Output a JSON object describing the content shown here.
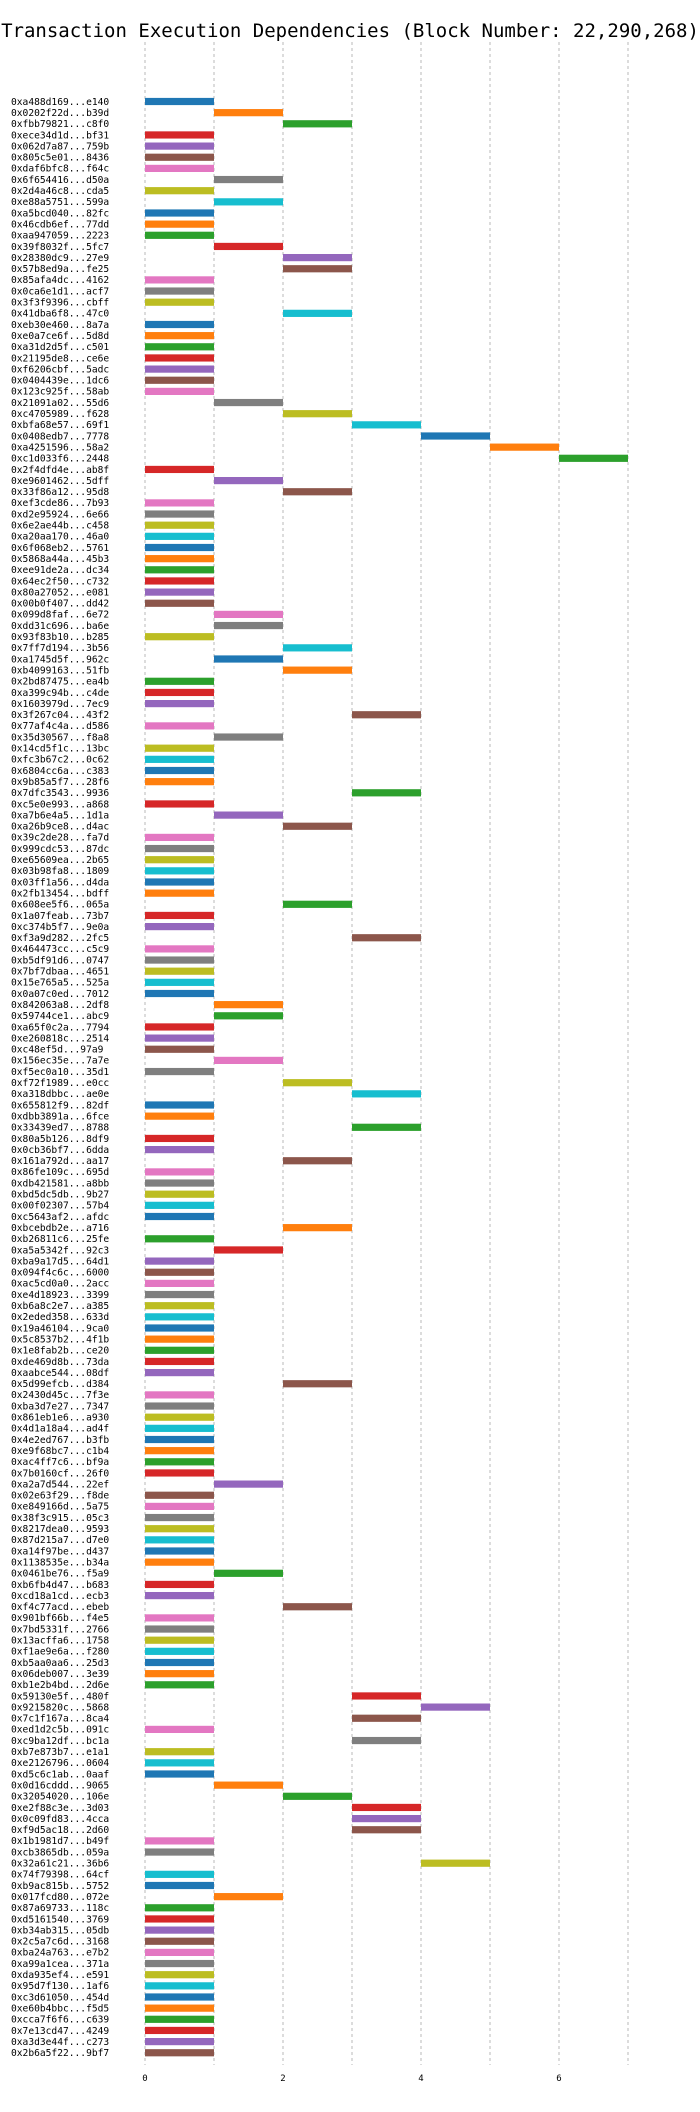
{
  "chart_data": {
    "type": "bar",
    "title": "Transaction Execution Dependencies (Block Number: 22,290,268)",
    "xlabel": "",
    "ylabel": "",
    "xlim": [
      0,
      7
    ],
    "xticks": [
      0,
      2,
      4,
      6
    ],
    "grid": "vertical dashed",
    "colors": [
      "#1f77b4",
      "#ff7f0e",
      "#2ca02c",
      "#d62728",
      "#9467bd",
      "#8c564b",
      "#e377c2",
      "#7f7f7f",
      "#bcbd22",
      "#17becf"
    ],
    "transactions": [
      {
        "tx": "0xa488d169...e140",
        "start": 0,
        "end": 1
      },
      {
        "tx": "0x0202f22d...b39d",
        "start": 1,
        "end": 2
      },
      {
        "tx": "0xfbb79821...c8f0",
        "start": 2,
        "end": 3
      },
      {
        "tx": "0xece34d1d...bf31",
        "start": 0,
        "end": 1
      },
      {
        "tx": "0x062d7a87...759b",
        "start": 0,
        "end": 1
      },
      {
        "tx": "0x805c5e01...8436",
        "start": 0,
        "end": 1
      },
      {
        "tx": "0xdaf6bfc8...f64c",
        "start": 0,
        "end": 1
      },
      {
        "tx": "0x6f654416...d50a",
        "start": 1,
        "end": 2
      },
      {
        "tx": "0x2d4a46c8...cda5",
        "start": 0,
        "end": 1
      },
      {
        "tx": "0xe88a5751...599a",
        "start": 1,
        "end": 2
      },
      {
        "tx": "0xa5bcd040...82fc",
        "start": 0,
        "end": 1
      },
      {
        "tx": "0x46cdb6ef...77dd",
        "start": 0,
        "end": 1
      },
      {
        "tx": "0xaa947059...2223",
        "start": 0,
        "end": 1
      },
      {
        "tx": "0x39f8032f...5fc7",
        "start": 1,
        "end": 2
      },
      {
        "tx": "0x28380dc9...27e9",
        "start": 2,
        "end": 3
      },
      {
        "tx": "0x57b8ed9a...fe25",
        "start": 2,
        "end": 3
      },
      {
        "tx": "0x85afa4dc...4162",
        "start": 0,
        "end": 1
      },
      {
        "tx": "0x0ca6e1d1...acf7",
        "start": 0,
        "end": 1
      },
      {
        "tx": "0x3f3f9396...cbff",
        "start": 0,
        "end": 1
      },
      {
        "tx": "0x41dba6f8...47c0",
        "start": 2,
        "end": 3
      },
      {
        "tx": "0xeb30e460...8a7a",
        "start": 0,
        "end": 1
      },
      {
        "tx": "0xe0a7ce6f...5d8d",
        "start": 0,
        "end": 1
      },
      {
        "tx": "0xa31d2d5f...c501",
        "start": 0,
        "end": 1
      },
      {
        "tx": "0x21195de8...ce6e",
        "start": 0,
        "end": 1
      },
      {
        "tx": "0xf6206cbf...5adc",
        "start": 0,
        "end": 1
      },
      {
        "tx": "0x0404439e...1dc6",
        "start": 0,
        "end": 1
      },
      {
        "tx": "0x123c925f...58ab",
        "start": 0,
        "end": 1
      },
      {
        "tx": "0x21091a02...55d6",
        "start": 1,
        "end": 2
      },
      {
        "tx": "0xc4705989...f628",
        "start": 2,
        "end": 3
      },
      {
        "tx": "0xbfa68e57...69f1",
        "start": 3,
        "end": 4
      },
      {
        "tx": "0x0408edb7...7778",
        "start": 4,
        "end": 5
      },
      {
        "tx": "0xa4251596...58a2",
        "start": 5,
        "end": 6
      },
      {
        "tx": "0xc1d033f6...2448",
        "start": 6,
        "end": 7
      },
      {
        "tx": "0x2f4dfd4e...ab8f",
        "start": 0,
        "end": 1
      },
      {
        "tx": "0xe9601462...5dff",
        "start": 1,
        "end": 2
      },
      {
        "tx": "0x33f86a12...95d8",
        "start": 2,
        "end": 3
      },
      {
        "tx": "0xef3cde86...7b93",
        "start": 0,
        "end": 1
      },
      {
        "tx": "0xd2e95924...6e66",
        "start": 0,
        "end": 1
      },
      {
        "tx": "0x6e2ae44b...c458",
        "start": 0,
        "end": 1
      },
      {
        "tx": "0xa20aa170...46a0",
        "start": 0,
        "end": 1
      },
      {
        "tx": "0x6f068eb2...5761",
        "start": 0,
        "end": 1
      },
      {
        "tx": "0x5868a44a...45b3",
        "start": 0,
        "end": 1
      },
      {
        "tx": "0xee91de2a...dc34",
        "start": 0,
        "end": 1
      },
      {
        "tx": "0x64ec2f50...c732",
        "start": 0,
        "end": 1
      },
      {
        "tx": "0x80a27052...e081",
        "start": 0,
        "end": 1
      },
      {
        "tx": "0x00b0f407...dd42",
        "start": 0,
        "end": 1
      },
      {
        "tx": "0x099d8faf...6e72",
        "start": 1,
        "end": 2
      },
      {
        "tx": "0xdd31c696...ba6e",
        "start": 1,
        "end": 2
      },
      {
        "tx": "0x93f83b10...b285",
        "start": 0,
        "end": 1
      },
      {
        "tx": "0x7ff7d194...3b56",
        "start": 2,
        "end": 3
      },
      {
        "tx": "0xa1745d5f...962c",
        "start": 1,
        "end": 2
      },
      {
        "tx": "0xb4099163...51fb",
        "start": 2,
        "end": 3
      },
      {
        "tx": "0x2bd87475...ea4b",
        "start": 0,
        "end": 1
      },
      {
        "tx": "0xa399c94b...c4de",
        "start": 0,
        "end": 1
      },
      {
        "tx": "0x1603979d...7ec9",
        "start": 0,
        "end": 1
      },
      {
        "tx": "0x3f267c04...43f2",
        "start": 3,
        "end": 4
      },
      {
        "tx": "0x77af4c4a...d586",
        "start": 0,
        "end": 1
      },
      {
        "tx": "0x35d30567...f8a8",
        "start": 1,
        "end": 2
      },
      {
        "tx": "0x14cd5f1c...13bc",
        "start": 0,
        "end": 1
      },
      {
        "tx": "0xfc3b67c2...0c62",
        "start": 0,
        "end": 1
      },
      {
        "tx": "0x6804cc6a...c383",
        "start": 0,
        "end": 1
      },
      {
        "tx": "0x9b85a5f7...28f6",
        "start": 0,
        "end": 1
      },
      {
        "tx": "0x7dfc3543...9936",
        "start": 3,
        "end": 4
      },
      {
        "tx": "0xc5e0e993...a868",
        "start": 0,
        "end": 1
      },
      {
        "tx": "0xa7b6e4a5...1d1a",
        "start": 1,
        "end": 2
      },
      {
        "tx": "0xa26b9ce8...d4ac",
        "start": 2,
        "end": 3
      },
      {
        "tx": "0x39c2de28...fa7d",
        "start": 0,
        "end": 1
      },
      {
        "tx": "0x999cdc53...87dc",
        "start": 0,
        "end": 1
      },
      {
        "tx": "0xe65609ea...2b65",
        "start": 0,
        "end": 1
      },
      {
        "tx": "0x03b98fa8...1809",
        "start": 0,
        "end": 1
      },
      {
        "tx": "0x03ff1a56...d4da",
        "start": 0,
        "end": 1
      },
      {
        "tx": "0x2fb13454...bdff",
        "start": 0,
        "end": 1
      },
      {
        "tx": "0x608ee5f6...065a",
        "start": 2,
        "end": 3
      },
      {
        "tx": "0x1a07feab...73b7",
        "start": 0,
        "end": 1
      },
      {
        "tx": "0xc374b5f7...9e0a",
        "start": 0,
        "end": 1
      },
      {
        "tx": "0xf3a9d282...2fc5",
        "start": 3,
        "end": 4
      },
      {
        "tx": "0x464473cc...c5c9",
        "start": 0,
        "end": 1
      },
      {
        "tx": "0xb5df91d6...0747",
        "start": 0,
        "end": 1
      },
      {
        "tx": "0x7bf7dbaa...4651",
        "start": 0,
        "end": 1
      },
      {
        "tx": "0x15e765a5...525a",
        "start": 0,
        "end": 1
      },
      {
        "tx": "0x0a07c0ed...7012",
        "start": 0,
        "end": 1
      },
      {
        "tx": "0x842063a8...2df8",
        "start": 1,
        "end": 2
      },
      {
        "tx": "0x59744ce1...abc9",
        "start": 1,
        "end": 2
      },
      {
        "tx": "0xa65f0c2a...7794",
        "start": 0,
        "end": 1
      },
      {
        "tx": "0xe260818c...2514",
        "start": 0,
        "end": 1
      },
      {
        "tx": "0xc48ef5d...97a9",
        "start": 0,
        "end": 1
      },
      {
        "tx": "0x156ec35e...7a7e",
        "start": 1,
        "end": 2
      },
      {
        "tx": "0xf5ec0a10...35d1",
        "start": 0,
        "end": 1
      },
      {
        "tx": "0xf72f1989...e0cc",
        "start": 2,
        "end": 3
      },
      {
        "tx": "0xa318dbbc...ae0e",
        "start": 3,
        "end": 4
      },
      {
        "tx": "0x655812f9...82df",
        "start": 0,
        "end": 1
      },
      {
        "tx": "0xdbb3891a...6fce",
        "start": 0,
        "end": 1
      },
      {
        "tx": "0x33439ed7...8788",
        "start": 3,
        "end": 4
      },
      {
        "tx": "0x80a5b126...8df9",
        "start": 0,
        "end": 1
      },
      {
        "tx": "0x0cb36bf7...6dda",
        "start": 0,
        "end": 1
      },
      {
        "tx": "0x161a792d...aa17",
        "start": 2,
        "end": 3
      },
      {
        "tx": "0x86fe109c...695d",
        "start": 0,
        "end": 1
      },
      {
        "tx": "0xdb421581...a8bb",
        "start": 0,
        "end": 1
      },
      {
        "tx": "0xbd5dc5db...9b27",
        "start": 0,
        "end": 1
      },
      {
        "tx": "0x00f02307...57b4",
        "start": 0,
        "end": 1
      },
      {
        "tx": "0xc5643af2...afdc",
        "start": 0,
        "end": 1
      },
      {
        "tx": "0xbcebdb2e...a716",
        "start": 2,
        "end": 3
      },
      {
        "tx": "0xb26811c6...25fe",
        "start": 0,
        "end": 1
      },
      {
        "tx": "0xa5a5342f...92c3",
        "start": 1,
        "end": 2
      },
      {
        "tx": "0xba9a17d5...64d1",
        "start": 0,
        "end": 1
      },
      {
        "tx": "0x094f4c6c...6000",
        "start": 0,
        "end": 1
      },
      {
        "tx": "0xac5cd0a0...2acc",
        "start": 0,
        "end": 1
      },
      {
        "tx": "0xe4d18923...3399",
        "start": 0,
        "end": 1
      },
      {
        "tx": "0xb6a8c2e7...a385",
        "start": 0,
        "end": 1
      },
      {
        "tx": "0x2eded358...633d",
        "start": 0,
        "end": 1
      },
      {
        "tx": "0x19a46104...9ca0",
        "start": 0,
        "end": 1
      },
      {
        "tx": "0x5c8537b2...4f1b",
        "start": 0,
        "end": 1
      },
      {
        "tx": "0x1e8fab2b...ce20",
        "start": 0,
        "end": 1
      },
      {
        "tx": "0xde469d8b...73da",
        "start": 0,
        "end": 1
      },
      {
        "tx": "0xaabce544...08df",
        "start": 0,
        "end": 1
      },
      {
        "tx": "0x5d99efcb...d384",
        "start": 2,
        "end": 3
      },
      {
        "tx": "0x2430d45c...7f3e",
        "start": 0,
        "end": 1
      },
      {
        "tx": "0xba3d7e27...7347",
        "start": 0,
        "end": 1
      },
      {
        "tx": "0x861eb1e6...a930",
        "start": 0,
        "end": 1
      },
      {
        "tx": "0x4d1a18a4...ad4f",
        "start": 0,
        "end": 1
      },
      {
        "tx": "0x4e2ed767...b3fb",
        "start": 0,
        "end": 1
      },
      {
        "tx": "0xe9f68bc7...c1b4",
        "start": 0,
        "end": 1
      },
      {
        "tx": "0xac4ff7c6...bf9a",
        "start": 0,
        "end": 1
      },
      {
        "tx": "0x7b0160cf...26f0",
        "start": 0,
        "end": 1
      },
      {
        "tx": "0xa2a7d544...22ef",
        "start": 1,
        "end": 2
      },
      {
        "tx": "0x02e63f29...f8de",
        "start": 0,
        "end": 1
      },
      {
        "tx": "0xe849166d...5a75",
        "start": 0,
        "end": 1
      },
      {
        "tx": "0x38f3c915...05c3",
        "start": 0,
        "end": 1
      },
      {
        "tx": "0x8217dea0...9593",
        "start": 0,
        "end": 1
      },
      {
        "tx": "0x87d215a7...d7e0",
        "start": 0,
        "end": 1
      },
      {
        "tx": "0xa14f97be...d437",
        "start": 0,
        "end": 1
      },
      {
        "tx": "0x1138535e...b34a",
        "start": 0,
        "end": 1
      },
      {
        "tx": "0x0461be76...f5a9",
        "start": 1,
        "end": 2
      },
      {
        "tx": "0xb6fb4d47...b683",
        "start": 0,
        "end": 1
      },
      {
        "tx": "0xcd18a1cd...ecb3",
        "start": 0,
        "end": 1
      },
      {
        "tx": "0xf4c77acd...ebeb",
        "start": 2,
        "end": 3
      },
      {
        "tx": "0x901bf66b...f4e5",
        "start": 0,
        "end": 1
      },
      {
        "tx": "0x7bd5331f...2766",
        "start": 0,
        "end": 1
      },
      {
        "tx": "0x13acffa6...1758",
        "start": 0,
        "end": 1
      },
      {
        "tx": "0xf1ae9e6a...f280",
        "start": 0,
        "end": 1
      },
      {
        "tx": "0xb5aa0aa6...25d3",
        "start": 0,
        "end": 1
      },
      {
        "tx": "0x06deb007...3e39",
        "start": 0,
        "end": 1
      },
      {
        "tx": "0xb1e2b4bd...2d6e",
        "start": 0,
        "end": 1
      },
      {
        "tx": "0x59130e5f...480f",
        "start": 3,
        "end": 4
      },
      {
        "tx": "0x9215820c...5868",
        "start": 4,
        "end": 5
      },
      {
        "tx": "0x7c1f167a...8ca4",
        "start": 3,
        "end": 4
      },
      {
        "tx": "0xed1d2c5b...091c",
        "start": 0,
        "end": 1
      },
      {
        "tx": "0xc9ba12df...bc1a",
        "start": 3,
        "end": 4
      },
      {
        "tx": "0xb7e873b7...e1a1",
        "start": 0,
        "end": 1
      },
      {
        "tx": "0xe2126796...0604",
        "start": 0,
        "end": 1
      },
      {
        "tx": "0xd5c6c1ab...0aaf",
        "start": 0,
        "end": 1
      },
      {
        "tx": "0x0d16cddd...9065",
        "start": 1,
        "end": 2
      },
      {
        "tx": "0x32054020...106e",
        "start": 2,
        "end": 3
      },
      {
        "tx": "0xe2f88c3e...3d03",
        "start": 3,
        "end": 4
      },
      {
        "tx": "0x0c09fd83...4cca",
        "start": 3,
        "end": 4
      },
      {
        "tx": "0xf9d5ac18...2d60",
        "start": 3,
        "end": 4
      },
      {
        "tx": "0x1b1981d7...b49f",
        "start": 0,
        "end": 1
      },
      {
        "tx": "0xcb3865db...059a",
        "start": 0,
        "end": 1
      },
      {
        "tx": "0x32a61c21...36b6",
        "start": 4,
        "end": 5
      },
      {
        "tx": "0x74f79398...64cf",
        "start": 0,
        "end": 1
      },
      {
        "tx": "0xb9ac815b...5752",
        "start": 0,
        "end": 1
      },
      {
        "tx": "0x017fcd80...072e",
        "start": 1,
        "end": 2
      },
      {
        "tx": "0x87a69733...118c",
        "start": 0,
        "end": 1
      },
      {
        "tx": "0xd5161540...3769",
        "start": 0,
        "end": 1
      },
      {
        "tx": "0xb34ab315...05db",
        "start": 0,
        "end": 1
      },
      {
        "tx": "0x2c5a7c6d...3168",
        "start": 0,
        "end": 1
      },
      {
        "tx": "0xba24a763...e7b2",
        "start": 0,
        "end": 1
      },
      {
        "tx": "0xa99a1cea...371a",
        "start": 0,
        "end": 1
      },
      {
        "tx": "0xda935ef4...e591",
        "start": 0,
        "end": 1
      },
      {
        "tx": "0x95d7f130...1af6",
        "start": 0,
        "end": 1
      },
      {
        "tx": "0xc3d61050...454d",
        "start": 0,
        "end": 1
      },
      {
        "tx": "0xe60b4bbc...f5d5",
        "start": 0,
        "end": 1
      },
      {
        "tx": "0xcca7f6f6...c639",
        "start": 0,
        "end": 1
      },
      {
        "tx": "0x7e13cd47...4249",
        "start": 0,
        "end": 1
      },
      {
        "tx": "0xa3d3e44f...c273",
        "start": 0,
        "end": 1
      },
      {
        "tx": "0x2b6a5f22...9bf7",
        "start": 0,
        "end": 1
      }
    ]
  }
}
